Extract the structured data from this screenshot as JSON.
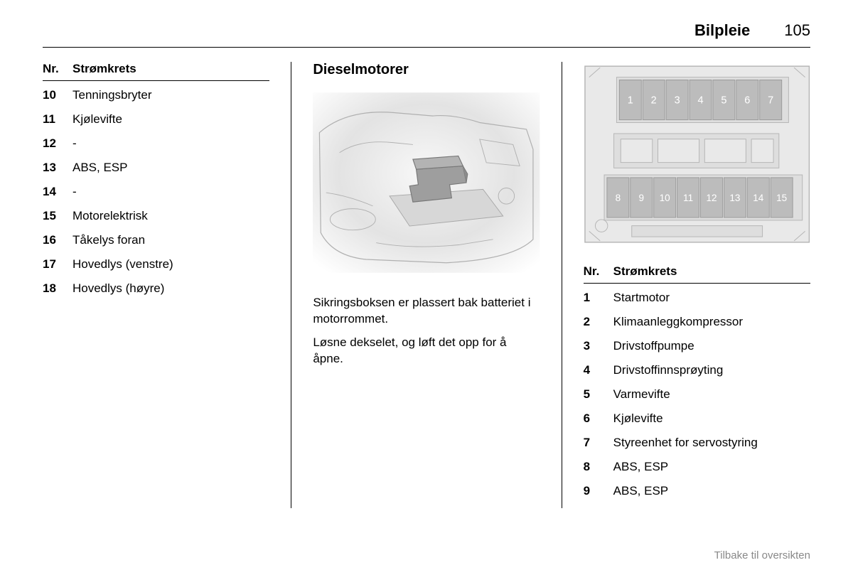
{
  "header": {
    "section_title": "Bilpleie",
    "page_number": "105"
  },
  "col1": {
    "table_header_nr": "Nr.",
    "table_header_circuit": "Strømkrets",
    "rows": [
      {
        "nr": "10",
        "label": "Tenningsbryter"
      },
      {
        "nr": "11",
        "label": "Kjølevifte"
      },
      {
        "nr": "12",
        "label": "-"
      },
      {
        "nr": "13",
        "label": "ABS, ESP"
      },
      {
        "nr": "14",
        "label": "-"
      },
      {
        "nr": "15",
        "label": "Motorelektrisk"
      },
      {
        "nr": "16",
        "label": "Tåkelys foran"
      },
      {
        "nr": "17",
        "label": "Hovedlys (venstre)"
      },
      {
        "nr": "18",
        "label": "Hovedlys (høyre)"
      }
    ]
  },
  "col2": {
    "title": "Dieselmotorer",
    "illustration": {
      "bg_gradient_top": "#ffffff",
      "bg_gradient_mid": "#e8e8e8",
      "bg_gradient_bottom": "#f5f5f5",
      "line_color": "#b0b0b0",
      "box_fill": "#a0a0a0",
      "box_stroke": "#808080"
    },
    "para1": "Sikringsboksen er plassert bak batteriet i motorrommet.",
    "para2": "Løsne dekselet, og løft det opp for å åpne."
  },
  "col3": {
    "diagram": {
      "bg": "#e9e9e9",
      "panel_border": "#b5b5b5",
      "slot_fill": "#bcbcbc",
      "slot_stroke": "#9a9a9a",
      "inner_panel": "#dedede",
      "text_color": "#ffffff",
      "top_row": [
        "1",
        "2",
        "3",
        "4",
        "5",
        "6",
        "7"
      ],
      "bottom_row": [
        "8",
        "9",
        "10",
        "11",
        "12",
        "13",
        "14",
        "15"
      ]
    },
    "table_header_nr": "Nr.",
    "table_header_circuit": "Strømkrets",
    "rows": [
      {
        "nr": "1",
        "label": "Startmotor"
      },
      {
        "nr": "2",
        "label": "Klimaanleggkompressor"
      },
      {
        "nr": "3",
        "label": "Drivstoffpumpe"
      },
      {
        "nr": "4",
        "label": "Drivstoffinnsprøyting"
      },
      {
        "nr": "5",
        "label": "Varmevifte"
      },
      {
        "nr": "6",
        "label": "Kjølevifte"
      },
      {
        "nr": "7",
        "label": "Styreenhet for servostyring"
      },
      {
        "nr": "8",
        "label": "ABS, ESP"
      },
      {
        "nr": "9",
        "label": "ABS, ESP"
      }
    ]
  },
  "footer": {
    "back_link": "Tilbake til oversikten"
  }
}
